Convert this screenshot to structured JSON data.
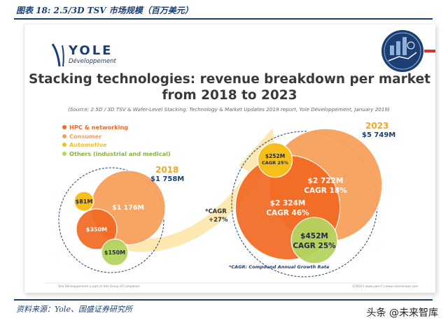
{
  "caption": "图表 18:  2.5/3D TSV 市场规模（百万美元）",
  "source": "资料来源：Yole、国盛证券研究所",
  "watermark": "头条 @未来智库",
  "logo": {
    "brand": "YOLE",
    "sub": "Développement"
  },
  "slide": {
    "title_line1": "Stacking technologies: revenue breakdown per market",
    "title_line2": "from 2018 to 2023",
    "source_note": "(Source: 2.5D / 3D TSV & Wafer-Level Stacking: Technology & Market Updates 2019 report, Yole Développement, January 2019)",
    "cagr_label_line1": "*CAGR",
    "cagr_label_line2": "+27%",
    "cagr_footnote": "*CAGR: Compound Annual Growth Rate",
    "footer_left": "Yole Développement is part of Yole Group of Companies",
    "footer_right": "©2019 | www.yole.fr | www.i-micronews.com"
  },
  "colors": {
    "hpc": "#f26a22",
    "consumer": "#f7a15c",
    "automotive": "#f7bf1c",
    "others": "#b5d45f",
    "text_dark": "#3a3a3a",
    "accent": "#f5a623"
  },
  "chart_data": {
    "type": "bubble",
    "title": "Stacking technologies: revenue breakdown per market from 2018 to 2023",
    "series": [
      {
        "name": "HPC & networking",
        "values": [
          350,
          2324
        ]
      },
      {
        "name": "Consumer",
        "values": [
          1176,
          2722
        ]
      },
      {
        "name": "Automotive",
        "values": [
          81,
          252
        ]
      },
      {
        "name": "Others (industrial and medical)",
        "values": [
          150,
          452
        ]
      }
    ],
    "categories": [
      "2018",
      "2023"
    ],
    "totals": [
      "$1 758M",
      "$5 749M"
    ],
    "labels_2018": [
      "$350M",
      "$1 176M",
      "$81M",
      "$150M"
    ],
    "labels_2023": [
      "$2 324M",
      "$2 722M",
      "$252M",
      "$452M"
    ],
    "cagr_2023": [
      "CAGR 46%",
      "CAGR 18%",
      "CAGR 25%",
      "CAGR 25%"
    ],
    "legend_position": "top-left"
  }
}
